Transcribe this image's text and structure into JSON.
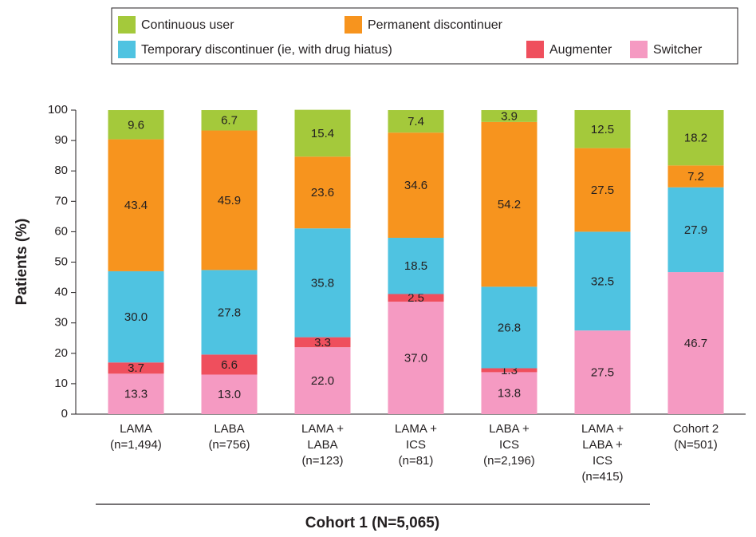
{
  "chart_data": {
    "type": "stacked_bar",
    "y_label": "Patients (%)",
    "group_label": "Cohort 1 (N=5,065)",
    "categories": [
      [
        "LAMA",
        "(n=1,494)"
      ],
      [
        "LABA",
        "(n=756)"
      ],
      [
        "LAMA +",
        "LABA",
        "(n=123)"
      ],
      [
        "LAMA +",
        "ICS",
        "(n=81)"
      ],
      [
        "LABA +",
        "ICS",
        "(n=2,196)"
      ],
      [
        "LAMA +",
        "LABA +",
        "ICS",
        "(n=415)"
      ],
      [
        "Cohort 2",
        "(N=501)"
      ]
    ],
    "series": [
      {
        "name": "Continuous user",
        "color": "#a4c93b",
        "values": [
          9.6,
          6.7,
          15.4,
          7.4,
          3.9,
          12.5,
          18.2
        ],
        "value_labels": [
          "9.6",
          "6.7",
          "15.4",
          "7.4",
          "3.9",
          "12.5",
          "18.2"
        ]
      },
      {
        "name": "Permanent discontinuer",
        "color": "#f7941e",
        "values": [
          43.4,
          45.9,
          23.6,
          34.6,
          54.2,
          27.5,
          7.2
        ],
        "value_labels": [
          "43.4",
          "45.9",
          "23.6",
          "34.6",
          "54.2",
          "27.5",
          "7.2"
        ]
      },
      {
        "name": "Temporary discontinuer (ie, with drug hiatus)",
        "color": "#4fc3e1",
        "values": [
          30.0,
          27.8,
          35.8,
          18.5,
          26.8,
          32.5,
          27.9
        ],
        "value_labels": [
          "30.0",
          "27.8",
          "35.8",
          "18.5",
          "26.8",
          "32.5",
          "27.9"
        ]
      },
      {
        "name": "Augmenter",
        "color": "#ef4f5d",
        "values": [
          3.7,
          6.6,
          3.3,
          2.5,
          1.3,
          null,
          null
        ],
        "value_labels": [
          "3.7",
          "6.6",
          "3.3",
          "2.5",
          "1.3",
          null,
          null
        ]
      },
      {
        "name": "Switcher",
        "color": "#f59ac2",
        "values": [
          13.3,
          13.0,
          22.0,
          37.0,
          13.8,
          27.5,
          46.7
        ],
        "value_labels": [
          "13.3",
          "13.0",
          "22.0",
          "37.0",
          "13.8",
          "27.5",
          "46.7"
        ]
      }
    ],
    "ylim": [
      0,
      100
    ],
    "yticks": [
      0,
      10,
      20,
      30,
      40,
      50,
      60,
      70,
      80,
      90,
      100
    ]
  }
}
